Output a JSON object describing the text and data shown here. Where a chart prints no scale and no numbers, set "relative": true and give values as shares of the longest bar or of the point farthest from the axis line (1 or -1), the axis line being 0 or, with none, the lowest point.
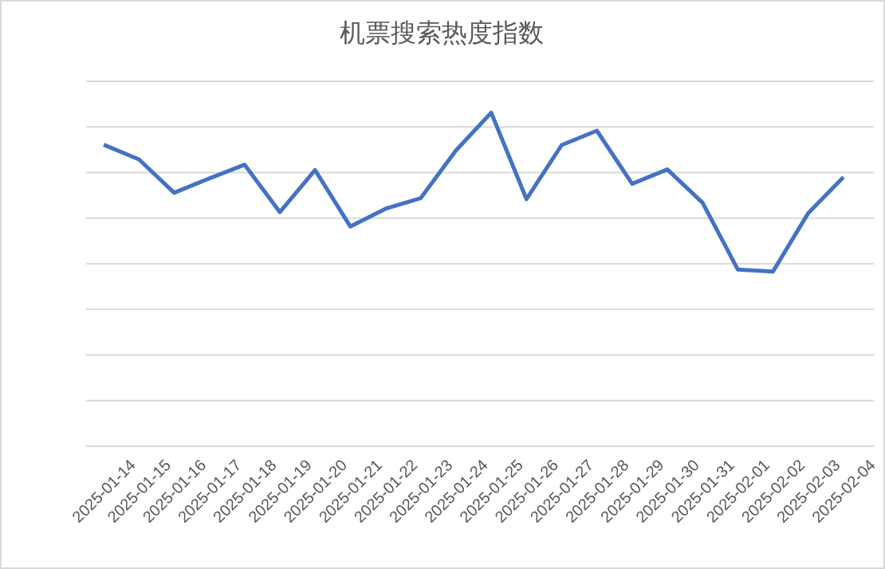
{
  "chart_data": {
    "type": "line",
    "title": "机票搜索热度指数",
    "relative": true,
    "grid": "y",
    "marker": "none",
    "line_style": "solid",
    "categories": [
      "2025-01-14",
      "2025-01-15",
      "2025-01-16",
      "2025-01-17",
      "2025-01-18",
      "2025-01-19",
      "2025-01-20",
      "2025-01-21",
      "2025-01-22",
      "2025-01-23",
      "2025-01-24",
      "2025-01-25",
      "2025-01-26",
      "2025-01-27",
      "2025-01-28",
      "2025-01-29",
      "2025-01-30",
      "2025-01-31",
      "2025-02-01",
      "2025-02-02",
      "2025-02-03",
      "2025-02-04"
    ],
    "series": [
      {
        "color": "#4472c4",
        "values": [
          0.904,
          0.86,
          0.76,
          0.803,
          0.844,
          0.702,
          0.828,
          0.659,
          0.712,
          0.744,
          0.887,
          1,
          0.741,
          0.903,
          0.946,
          0.787,
          0.83,
          0.73,
          0.53,
          0.524,
          0.699,
          0.807
        ]
      }
    ]
  }
}
